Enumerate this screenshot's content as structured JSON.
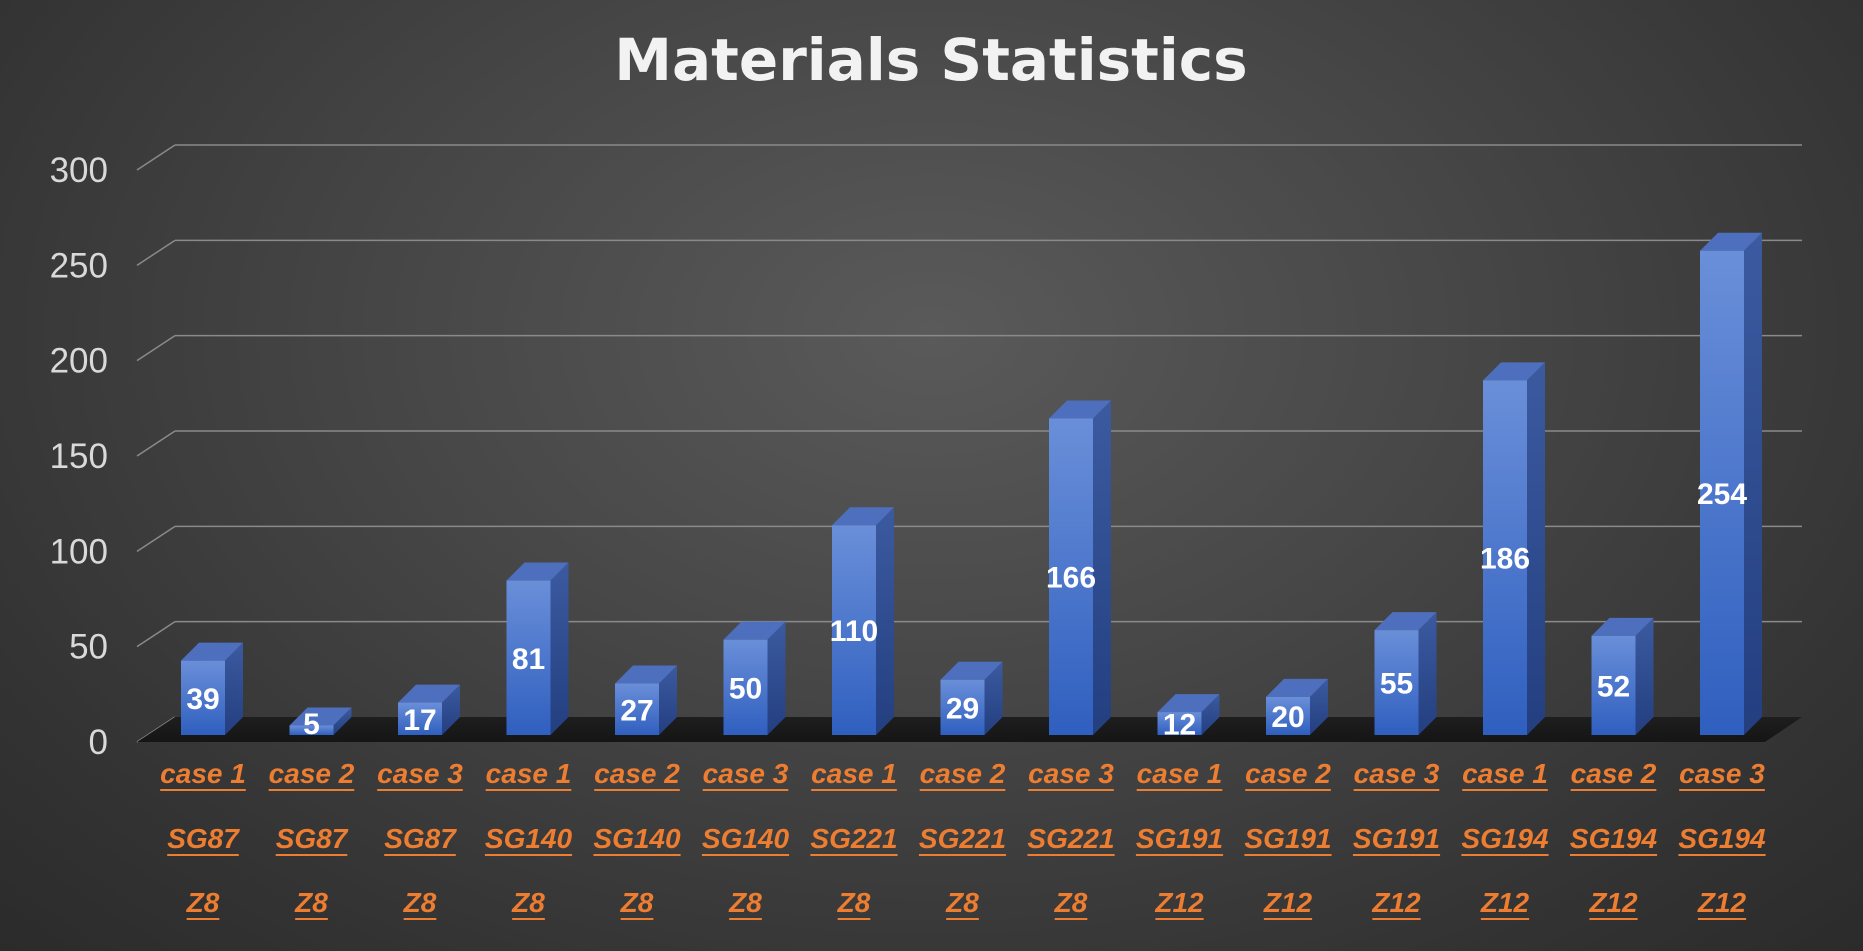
{
  "chart_data": {
    "type": "bar",
    "title": "Materials Statistics",
    "xlabel": "",
    "ylabel": "",
    "ylim": [
      0,
      300
    ],
    "yticks": [
      "0",
      "50",
      "100",
      "150",
      "200",
      "250",
      "300"
    ],
    "grid": true,
    "legend": "none",
    "categories": [
      [
        "case 1",
        "SG87",
        "Z8"
      ],
      [
        "case 2",
        "SG87",
        "Z8"
      ],
      [
        "case 3",
        "SG87",
        "Z8"
      ],
      [
        "case 1",
        "SG140",
        "Z8"
      ],
      [
        "case 2",
        "SG140",
        "Z8"
      ],
      [
        "case 3",
        "SG140",
        "Z8"
      ],
      [
        "case 1",
        "SG221",
        "Z8"
      ],
      [
        "case 2",
        "SG221",
        "Z8"
      ],
      [
        "case 3",
        "SG221",
        "Z8"
      ],
      [
        "case 1",
        "SG191",
        "Z12"
      ],
      [
        "case 2",
        "SG191",
        "Z12"
      ],
      [
        "case 3",
        "SG191",
        "Z12"
      ],
      [
        "case 1",
        "SG194",
        "Z12"
      ],
      [
        "case 2",
        "SG194",
        "Z12"
      ],
      [
        "case 3",
        "SG194",
        "Z12"
      ]
    ],
    "values": [
      39,
      5,
      17,
      81,
      27,
      50,
      110,
      29,
      166,
      12,
      20,
      55,
      186,
      52,
      254
    ],
    "colors": {
      "bar": "#4472c4",
      "label": "#ed7d31",
      "data_label": "#ffffff"
    }
  }
}
